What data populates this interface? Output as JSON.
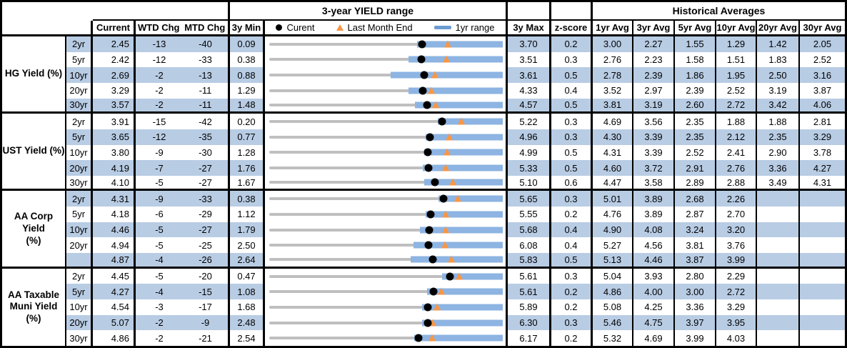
{
  "header": {
    "yield_range_title": "3-year YIELD range",
    "historical_averages_title": "Historical Averages",
    "current": "Current",
    "wtd_chg": "WTD Chg",
    "mtd_chg": "MTD Chg",
    "min_3y": "3y Min",
    "max_3y": "3y Max",
    "z_score": "z-score",
    "avg_cols": [
      "1yr Avg",
      "3yr Avg",
      "5yr Avg",
      "10yr Avg",
      "20yr Avg",
      "30yr Avg"
    ]
  },
  "legend": {
    "current_label": "Curent",
    "last_month_end_label": "Last Month End",
    "range_1yr_label": "1yr range"
  },
  "colors": {
    "row_stripe": "#b8cce4",
    "bar_1yr_range": "#8db4e2",
    "legend_dash": "#6d9bd3",
    "last_month_end_marker": "#f79646",
    "range_line_3y": "#bfbfbf",
    "current_marker": "#000000",
    "border": "#000000"
  },
  "sections": [
    {
      "label": "HG Yield (%)",
      "rows": [
        {
          "tenor": "2yr",
          "current": "2.45",
          "wtd_chg": "-13",
          "mtd_chg": "-40",
          "min_3y": "0.09",
          "max_3y": "3.70",
          "z_score": "0.2",
          "avgs": [
            "3.00",
            "2.27",
            "1.55",
            "1.29",
            "1.42",
            "2.05"
          ]
        },
        {
          "tenor": "5yr",
          "current": "2.42",
          "wtd_chg": "-12",
          "mtd_chg": "-33",
          "min_3y": "0.38",
          "max_3y": "3.51",
          "z_score": "0.3",
          "avgs": [
            "2.76",
            "2.23",
            "1.58",
            "1.51",
            "1.83",
            "2.52"
          ]
        },
        {
          "tenor": "10yr",
          "current": "2.69",
          "wtd_chg": "-2",
          "mtd_chg": "-13",
          "min_3y": "0.88",
          "max_3y": "3.61",
          "z_score": "0.5",
          "avgs": [
            "2.78",
            "2.39",
            "1.86",
            "1.95",
            "2.50",
            "3.16"
          ]
        },
        {
          "tenor": "20yr",
          "current": "3.29",
          "wtd_chg": "-2",
          "mtd_chg": "-11",
          "min_3y": "1.29",
          "max_3y": "4.33",
          "z_score": "0.4",
          "avgs": [
            "3.52",
            "2.97",
            "2.39",
            "2.52",
            "3.19",
            "3.87"
          ]
        },
        {
          "tenor": "30yr",
          "current": "3.57",
          "wtd_chg": "-2",
          "mtd_chg": "-11",
          "min_3y": "1.48",
          "max_3y": "4.57",
          "z_score": "0.5",
          "avgs": [
            "3.81",
            "3.19",
            "2.60",
            "2.72",
            "3.42",
            "4.06"
          ]
        }
      ]
    },
    {
      "label": "UST Yield (%)",
      "rows": [
        {
          "tenor": "2yr",
          "current": "3.91",
          "wtd_chg": "-15",
          "mtd_chg": "-42",
          "min_3y": "0.20",
          "max_3y": "5.22",
          "z_score": "0.3",
          "avgs": [
            "4.69",
            "3.56",
            "2.35",
            "1.88",
            "1.88",
            "2.81"
          ]
        },
        {
          "tenor": "5yr",
          "current": "3.65",
          "wtd_chg": "-12",
          "mtd_chg": "-35",
          "min_3y": "0.77",
          "max_3y": "4.96",
          "z_score": "0.3",
          "avgs": [
            "4.30",
            "3.39",
            "2.35",
            "2.12",
            "2.35",
            "3.29"
          ]
        },
        {
          "tenor": "10yr",
          "current": "3.80",
          "wtd_chg": "-9",
          "mtd_chg": "-30",
          "min_3y": "1.28",
          "max_3y": "4.99",
          "z_score": "0.5",
          "avgs": [
            "4.31",
            "3.39",
            "2.52",
            "2.41",
            "2.90",
            "3.78"
          ]
        },
        {
          "tenor": "20yr",
          "current": "4.19",
          "wtd_chg": "-7",
          "mtd_chg": "-27",
          "min_3y": "1.76",
          "max_3y": "5.33",
          "z_score": "0.5",
          "avgs": [
            "4.60",
            "3.72",
            "2.91",
            "2.76",
            "3.36",
            "4.27"
          ]
        },
        {
          "tenor": "30yr",
          "current": "4.10",
          "wtd_chg": "-5",
          "mtd_chg": "-27",
          "min_3y": "1.67",
          "max_3y": "5.10",
          "z_score": "0.6",
          "avgs": [
            "4.47",
            "3.58",
            "2.89",
            "2.88",
            "3.49",
            "4.31"
          ]
        }
      ]
    },
    {
      "label": "AA Corp Yield\n(%)",
      "rows": [
        {
          "tenor": "2yr",
          "current": "4.31",
          "wtd_chg": "-9",
          "mtd_chg": "-33",
          "min_3y": "0.38",
          "max_3y": "5.65",
          "z_score": "0.3",
          "avgs": [
            "5.01",
            "3.89",
            "2.68",
            "2.26",
            "",
            ""
          ]
        },
        {
          "tenor": "5yr",
          "current": "4.18",
          "wtd_chg": "-6",
          "mtd_chg": "-29",
          "min_3y": "1.12",
          "max_3y": "5.55",
          "z_score": "0.2",
          "avgs": [
            "4.76",
            "3.89",
            "2.87",
            "2.70",
            "",
            ""
          ]
        },
        {
          "tenor": "10yr",
          "current": "4.46",
          "wtd_chg": "-5",
          "mtd_chg": "-27",
          "min_3y": "1.79",
          "max_3y": "5.68",
          "z_score": "0.4",
          "avgs": [
            "4.90",
            "4.08",
            "3.24",
            "3.20",
            "",
            ""
          ]
        },
        {
          "tenor": "20yr",
          "current": "4.94",
          "wtd_chg": "-5",
          "mtd_chg": "-25",
          "min_3y": "2.50",
          "max_3y": "6.08",
          "z_score": "0.4",
          "avgs": [
            "5.27",
            "4.56",
            "3.81",
            "3.76",
            "",
            ""
          ]
        },
        {
          "tenor": "",
          "current": "4.87",
          "wtd_chg": "-4",
          "mtd_chg": "-26",
          "min_3y": "2.64",
          "max_3y": "5.83",
          "z_score": "0.5",
          "avgs": [
            "5.13",
            "4.46",
            "3.87",
            "3.99",
            "",
            ""
          ]
        }
      ]
    },
    {
      "label": "AA Taxable\nMuni Yield\n(%)",
      "rows": [
        {
          "tenor": "2yr",
          "current": "4.45",
          "wtd_chg": "-5",
          "mtd_chg": "-20",
          "min_3y": "0.47",
          "max_3y": "5.61",
          "z_score": "0.3",
          "avgs": [
            "5.04",
            "3.93",
            "2.80",
            "2.29",
            "",
            ""
          ]
        },
        {
          "tenor": "5yr",
          "current": "4.27",
          "wtd_chg": "-4",
          "mtd_chg": "-15",
          "min_3y": "1.08",
          "max_3y": "5.61",
          "z_score": "0.2",
          "avgs": [
            "4.86",
            "4.00",
            "3.00",
            "2.72",
            "",
            ""
          ]
        },
        {
          "tenor": "10yr",
          "current": "4.54",
          "wtd_chg": "-3",
          "mtd_chg": "-17",
          "min_3y": "1.68",
          "max_3y": "5.89",
          "z_score": "0.2",
          "avgs": [
            "5.08",
            "4.25",
            "3.36",
            "3.29",
            "",
            ""
          ]
        },
        {
          "tenor": "20yr",
          "current": "5.07",
          "wtd_chg": "-2",
          "mtd_chg": "-9",
          "min_3y": "2.48",
          "max_3y": "6.30",
          "z_score": "0.3",
          "avgs": [
            "5.46",
            "4.75",
            "3.97",
            "3.95",
            "",
            ""
          ]
        },
        {
          "tenor": "30yr",
          "current": "4.86",
          "wtd_chg": "-2",
          "mtd_chg": "-21",
          "min_3y": "2.54",
          "max_3y": "6.17",
          "z_score": "0.2",
          "avgs": [
            "5.32",
            "4.69",
            "3.99",
            "4.03",
            "",
            ""
          ]
        }
      ]
    }
  ],
  "chart_data": {
    "type": "bullet-range",
    "title": "3-year YIELD range",
    "x_axis_per_row": "3y Min to 3y Max",
    "markers": {
      "dot": "Curent",
      "triangle": "Last Month End",
      "bar": "1yr range"
    },
    "rows": [
      {
        "series": "HG Yield (%)",
        "tenor": "2yr",
        "min_3y": 0.09,
        "max_3y": 3.7,
        "current": 2.45,
        "last_month_end": 2.85,
        "range_1yr": [
          2.37,
          3.7
        ]
      },
      {
        "series": "HG Yield (%)",
        "tenor": "5yr",
        "min_3y": 0.38,
        "max_3y": 3.51,
        "current": 2.42,
        "last_month_end": 2.75,
        "range_1yr": [
          2.25,
          3.51
        ]
      },
      {
        "series": "HG Yield (%)",
        "tenor": "10yr",
        "min_3y": 0.88,
        "max_3y": 3.61,
        "current": 2.69,
        "last_month_end": 2.82,
        "range_1yr": [
          2.3,
          3.61
        ]
      },
      {
        "series": "HG Yield (%)",
        "tenor": "20yr",
        "min_3y": 1.29,
        "max_3y": 4.33,
        "current": 3.29,
        "last_month_end": 3.4,
        "range_1yr": [
          3.1,
          4.33
        ]
      },
      {
        "series": "HG Yield (%)",
        "tenor": "30yr",
        "min_3y": 1.48,
        "max_3y": 4.57,
        "current": 3.57,
        "last_month_end": 3.68,
        "range_1yr": [
          3.41,
          4.57
        ]
      },
      {
        "series": "UST Yield (%)",
        "tenor": "2yr",
        "min_3y": 0.2,
        "max_3y": 5.22,
        "current": 3.91,
        "last_month_end": 4.33,
        "range_1yr": [
          3.82,
          5.22
        ]
      },
      {
        "series": "UST Yield (%)",
        "tenor": "5yr",
        "min_3y": 0.77,
        "max_3y": 4.96,
        "current": 3.65,
        "last_month_end": 4.0,
        "range_1yr": [
          3.57,
          4.96
        ]
      },
      {
        "series": "UST Yield (%)",
        "tenor": "10yr",
        "min_3y": 1.28,
        "max_3y": 4.99,
        "current": 3.8,
        "last_month_end": 4.1,
        "range_1yr": [
          3.74,
          4.99
        ]
      },
      {
        "series": "UST Yield (%)",
        "tenor": "20yr",
        "min_3y": 1.76,
        "max_3y": 5.33,
        "current": 4.19,
        "last_month_end": 4.46,
        "range_1yr": [
          4.11,
          5.33
        ]
      },
      {
        "series": "UST Yield (%)",
        "tenor": "30yr",
        "min_3y": 1.67,
        "max_3y": 5.1,
        "current": 4.1,
        "last_month_end": 4.37,
        "range_1yr": [
          3.95,
          5.1
        ]
      },
      {
        "series": "AA Corp Yield (%)",
        "tenor": "2yr",
        "min_3y": 0.38,
        "max_3y": 5.65,
        "current": 4.31,
        "last_month_end": 4.64,
        "range_1yr": [
          4.2,
          5.65
        ]
      },
      {
        "series": "AA Corp Yield (%)",
        "tenor": "5yr",
        "min_3y": 1.12,
        "max_3y": 5.55,
        "current": 4.18,
        "last_month_end": 4.47,
        "range_1yr": [
          4.08,
          5.55
        ]
      },
      {
        "series": "AA Corp Yield (%)",
        "tenor": "10yr",
        "min_3y": 1.79,
        "max_3y": 5.68,
        "current": 4.46,
        "last_month_end": 4.73,
        "range_1yr": [
          4.3,
          5.68
        ]
      },
      {
        "series": "AA Corp Yield (%)",
        "tenor": "20yr",
        "min_3y": 2.5,
        "max_3y": 6.08,
        "current": 4.94,
        "last_month_end": 5.19,
        "range_1yr": [
          4.71,
          6.08
        ]
      },
      {
        "series": "AA Corp Yield (%)",
        "tenor": "30yr",
        "min_3y": 2.64,
        "max_3y": 5.83,
        "current": 4.87,
        "last_month_end": 5.13,
        "range_1yr": [
          4.57,
          5.83
        ]
      },
      {
        "series": "AA Taxable Muni Yield (%)",
        "tenor": "2yr",
        "min_3y": 0.47,
        "max_3y": 5.61,
        "current": 4.45,
        "last_month_end": 4.65,
        "range_1yr": [
          4.27,
          5.61
        ]
      },
      {
        "series": "AA Taxable Muni Yield (%)",
        "tenor": "5yr",
        "min_3y": 1.08,
        "max_3y": 5.61,
        "current": 4.27,
        "last_month_end": 4.42,
        "range_1yr": [
          4.14,
          5.61
        ]
      },
      {
        "series": "AA Taxable Muni Yield (%)",
        "tenor": "10yr",
        "min_3y": 1.68,
        "max_3y": 5.89,
        "current": 4.54,
        "last_month_end": 4.71,
        "range_1yr": [
          4.44,
          5.89
        ]
      },
      {
        "series": "AA Taxable Muni Yield (%)",
        "tenor": "20yr",
        "min_3y": 2.48,
        "max_3y": 6.3,
        "current": 5.07,
        "last_month_end": 5.16,
        "range_1yr": [
          4.98,
          6.3
        ]
      },
      {
        "series": "AA Taxable Muni Yield (%)",
        "tenor": "30yr",
        "min_3y": 2.54,
        "max_3y": 6.17,
        "current": 4.86,
        "last_month_end": 5.07,
        "range_1yr": [
          4.79,
          6.17
        ]
      }
    ]
  }
}
